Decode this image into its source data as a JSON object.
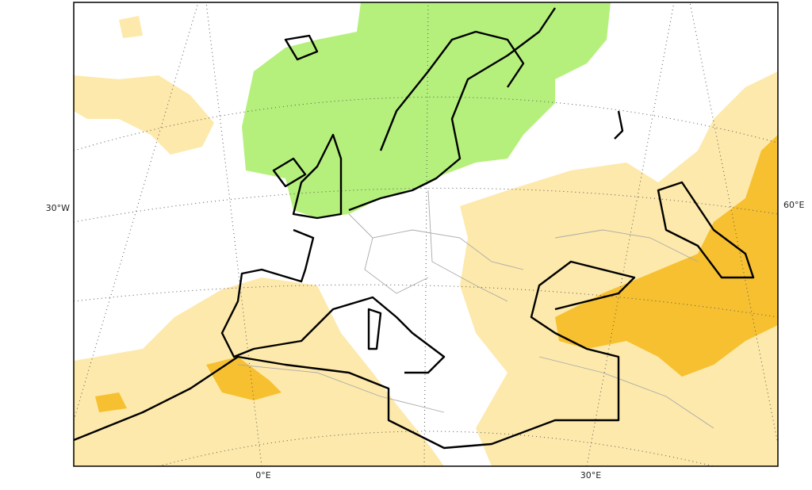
{
  "map": {
    "labels": {
      "left": "30°W",
      "right": "60°E",
      "bottom": [
        "0°E",
        "30°E"
      ]
    }
  }
}
